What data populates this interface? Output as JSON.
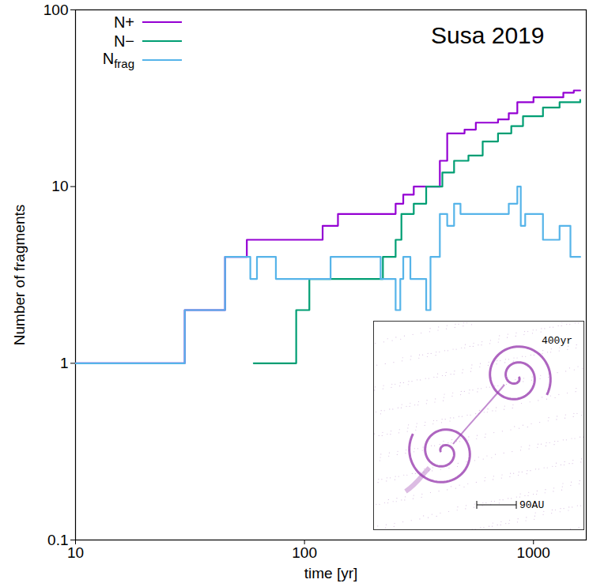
{
  "chart_data": {
    "type": "line",
    "annotation": "Susa 2019",
    "inset_labels": [
      "400yr",
      "90AU"
    ],
    "x_label": "time [yr]",
    "y_label": "Number of fragments",
    "log": true,
    "xlim": [
      10,
      1700
    ],
    "xticks": [
      10,
      100,
      1000
    ],
    "ylim": [
      0.1,
      100
    ],
    "yticks": [
      0.1,
      1,
      10,
      100
    ],
    "legend": "top-left",
    "line_style": "step",
    "series": [
      {
        "name": "N+",
        "color": "#9400d3",
        "x": [
          10,
          30,
          45,
          56,
          120,
          140,
          250,
          270,
          300,
          390,
          420,
          500,
          560,
          700,
          780,
          850,
          1000,
          1350,
          1500,
          1600
        ],
        "values": [
          1,
          2,
          4,
          5,
          6,
          7,
          8,
          9,
          10,
          14,
          20,
          21,
          23,
          24,
          26,
          30,
          32,
          34,
          35,
          35
        ]
      },
      {
        "name": "N−",
        "color": "#009e73",
        "x": [
          60,
          92,
          105,
          220,
          250,
          265,
          300,
          340,
          400,
          450,
          520,
          600,
          700,
          800,
          900,
          1100,
          1300,
          1600
        ],
        "values": [
          1,
          2,
          3,
          4,
          5,
          7,
          8,
          10,
          12,
          14,
          15,
          18,
          20,
          22,
          25,
          28,
          30,
          31
        ]
      },
      {
        "name": "Nfrag",
        "color": "#56b4e9",
        "x": [
          10,
          30,
          45,
          58,
          62,
          75,
          130,
          215,
          250,
          262,
          270,
          290,
          340,
          355,
          390,
          420,
          450,
          480,
          600,
          780,
          850,
          880,
          920,
          1100,
          1300,
          1450,
          1600
        ],
        "values": [
          1,
          2,
          4,
          3,
          4,
          3,
          4,
          3,
          2,
          3,
          4,
          3,
          2,
          4,
          7,
          6,
          8,
          7,
          7,
          8,
          10,
          6,
          7,
          5,
          6,
          4,
          4
        ]
      }
    ]
  }
}
